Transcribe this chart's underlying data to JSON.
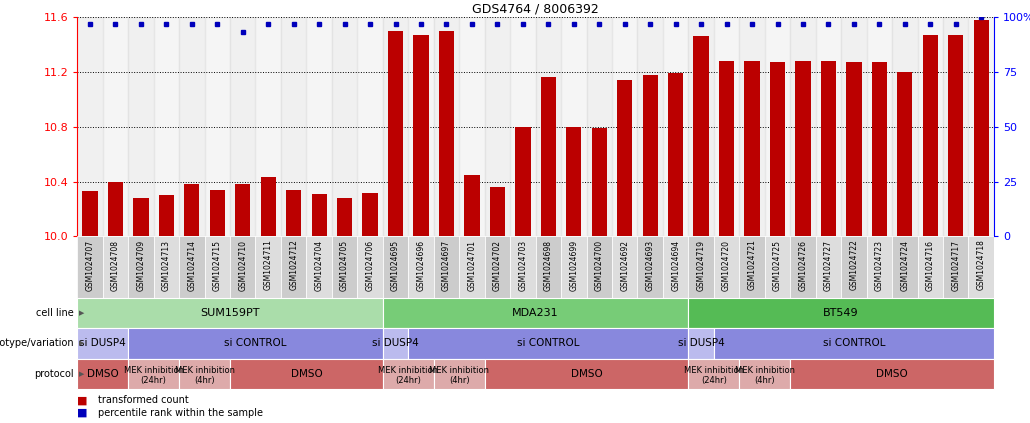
{
  "title": "GDS4764 / 8006392",
  "samples": [
    "GSM1024707",
    "GSM1024708",
    "GSM1024709",
    "GSM1024713",
    "GSM1024714",
    "GSM1024715",
    "GSM1024710",
    "GSM1024711",
    "GSM1024712",
    "GSM1024704",
    "GSM1024705",
    "GSM1024706",
    "GSM1024695",
    "GSM1024696",
    "GSM1024697",
    "GSM1024701",
    "GSM1024702",
    "GSM1024703",
    "GSM1024698",
    "GSM1024699",
    "GSM1024700",
    "GSM1024692",
    "GSM1024693",
    "GSM1024694",
    "GSM1024719",
    "GSM1024720",
    "GSM1024721",
    "GSM1024725",
    "GSM1024726",
    "GSM1024727",
    "GSM1024722",
    "GSM1024723",
    "GSM1024724",
    "GSM1024716",
    "GSM1024717",
    "GSM1024718"
  ],
  "bar_values": [
    10.33,
    10.4,
    10.28,
    10.3,
    10.38,
    10.34,
    10.38,
    10.43,
    10.34,
    10.31,
    10.28,
    10.32,
    11.5,
    11.47,
    11.5,
    10.45,
    10.36,
    10.8,
    11.16,
    10.8,
    10.79,
    11.14,
    11.18,
    11.19,
    11.46,
    11.28,
    11.28,
    11.27,
    11.28,
    11.28,
    11.27,
    11.27,
    11.2,
    11.47,
    11.47,
    11.58
  ],
  "percentile_values": [
    97,
    97,
    97,
    97,
    97,
    97,
    93,
    97,
    97,
    97,
    97,
    97,
    97,
    97,
    97,
    97,
    97,
    97,
    97,
    97,
    97,
    97,
    97,
    97,
    97,
    97,
    97,
    97,
    97,
    97,
    97,
    97,
    97,
    97,
    97,
    100
  ],
  "ymin": 10.0,
  "ymax": 11.6,
  "yticks": [
    10.0,
    10.4,
    10.8,
    11.2,
    11.6
  ],
  "right_yticks": [
    0,
    25,
    50,
    75,
    100
  ],
  "bar_color": "#BB0000",
  "dot_color": "#0000BB",
  "bg_color_even": "#D0D0D0",
  "bg_color_odd": "#E0E0E0",
  "cell_line_data": [
    {
      "label": "SUM159PT",
      "start": 0,
      "end": 11,
      "color": "#AADDAA"
    },
    {
      "label": "MDA231",
      "start": 12,
      "end": 23,
      "color": "#77CC77"
    },
    {
      "label": "BT549",
      "start": 24,
      "end": 35,
      "color": "#55BB55"
    }
  ],
  "genotype_data": [
    {
      "label": "si DUSP4",
      "start": 0,
      "end": 1,
      "color": "#BBBBEE"
    },
    {
      "label": "si CONTROL",
      "start": 2,
      "end": 11,
      "color": "#8888DD"
    },
    {
      "label": "si DUSP4",
      "start": 12,
      "end": 12,
      "color": "#BBBBEE"
    },
    {
      "label": "si CONTROL",
      "start": 13,
      "end": 23,
      "color": "#8888DD"
    },
    {
      "label": "si DUSP4",
      "start": 24,
      "end": 24,
      "color": "#BBBBEE"
    },
    {
      "label": "si CONTROL",
      "start": 25,
      "end": 35,
      "color": "#8888DD"
    }
  ],
  "protocol_data": [
    {
      "label": "DMSO",
      "start": 0,
      "end": 1,
      "color": "#CC6666"
    },
    {
      "label": "MEK inhibition\n(24hr)",
      "start": 2,
      "end": 3,
      "color": "#DDAAAA"
    },
    {
      "label": "MEK inhibition\n(4hr)",
      "start": 4,
      "end": 5,
      "color": "#DDAAAA"
    },
    {
      "label": "DMSO",
      "start": 6,
      "end": 11,
      "color": "#CC6666"
    },
    {
      "label": "MEK inhibition\n(24hr)",
      "start": 12,
      "end": 13,
      "color": "#DDAAAA"
    },
    {
      "label": "MEK inhibition\n(4hr)",
      "start": 14,
      "end": 15,
      "color": "#DDAAAA"
    },
    {
      "label": "DMSO",
      "start": 16,
      "end": 23,
      "color": "#CC6666"
    },
    {
      "label": "MEK inhibition\n(24hr)",
      "start": 24,
      "end": 25,
      "color": "#DDAAAA"
    },
    {
      "label": "MEK inhibition\n(4hr)",
      "start": 26,
      "end": 27,
      "color": "#DDAAAA"
    },
    {
      "label": "DMSO",
      "start": 28,
      "end": 35,
      "color": "#CC6666"
    }
  ]
}
